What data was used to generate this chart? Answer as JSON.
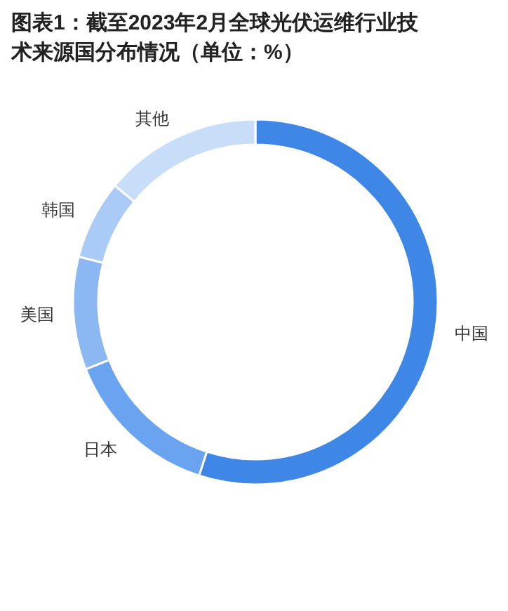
{
  "chart_data": {
    "type": "donut",
    "title": "图表1：截至2023年2月全球光伏运维行业技术来源国分布情况（单位：%）",
    "categories": [
      "中国",
      "日本",
      "美国",
      "韩国",
      "其他"
    ],
    "values": [
      55,
      14,
      10,
      7,
      14
    ],
    "colors": [
      "#3f87e6",
      "#6aa3ef",
      "#8bb8f2",
      "#a9cbf5",
      "#c8ddf8"
    ]
  }
}
